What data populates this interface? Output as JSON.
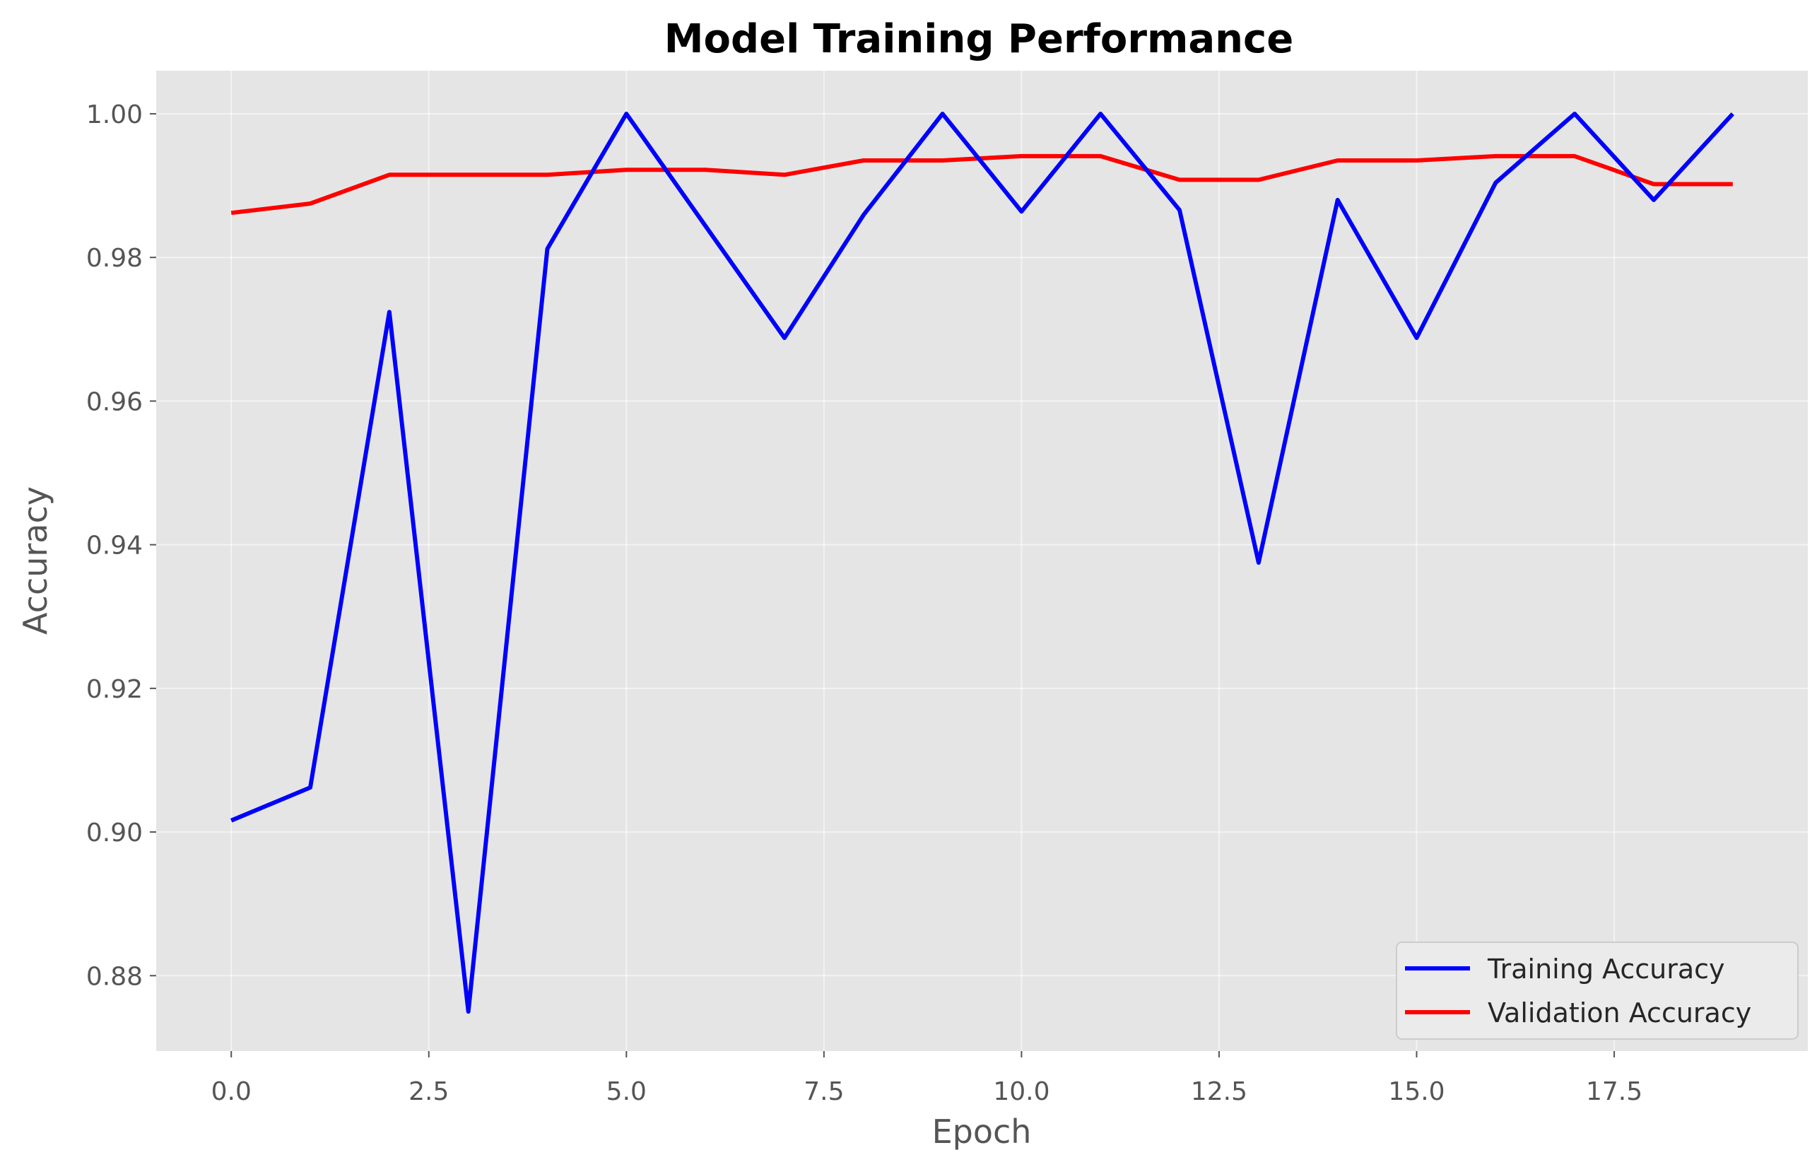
{
  "chart_data": {
    "type": "line",
    "title": "Model Training Performance",
    "xlabel": "Epoch",
    "ylabel": "Accuracy",
    "xlim": [
      -0.95,
      19.95
    ],
    "ylim": [
      0.8695,
      1.006
    ],
    "x_ticks": [
      0,
      2.5,
      5,
      7.5,
      10,
      12.5,
      15,
      17.5
    ],
    "x_tick_labels": [
      "0.0",
      "2.5",
      "5.0",
      "7.5",
      "10.0",
      "12.5",
      "15.0",
      "17.5"
    ],
    "y_ticks": [
      0.88,
      0.9,
      0.92,
      0.94,
      0.96,
      0.98,
      1.0
    ],
    "y_tick_labels": [
      "0.88",
      "0.90",
      "0.92",
      "0.94",
      "0.96",
      "0.98",
      "1.00"
    ],
    "grid": true,
    "legend_position": "bottom-right",
    "x": [
      0,
      1,
      2,
      3,
      4,
      5,
      6,
      7,
      8,
      9,
      10,
      11,
      12,
      13,
      14,
      15,
      16,
      17,
      18,
      19
    ],
    "series": [
      {
        "name": "Training Accuracy",
        "color": "#0000ff",
        "values": [
          0.9016,
          0.9062,
          0.9724,
          0.875,
          0.9812,
          1.0,
          0.9844,
          0.9688,
          0.9859,
          1.0,
          0.9864,
          1.0,
          0.9866,
          0.9375,
          0.988,
          0.9688,
          0.9904,
          1.0,
          0.988,
          1.0
        ]
      },
      {
        "name": "Validation Accuracy",
        "color": "#ff0000",
        "values": [
          0.9862,
          0.9875,
          0.9915,
          0.9915,
          0.9915,
          0.9922,
          0.9922,
          0.9915,
          0.9935,
          0.9935,
          0.9941,
          0.9941,
          0.9908,
          0.9908,
          0.9935,
          0.9935,
          0.9941,
          0.9941,
          0.9902,
          0.9902
        ]
      }
    ]
  }
}
